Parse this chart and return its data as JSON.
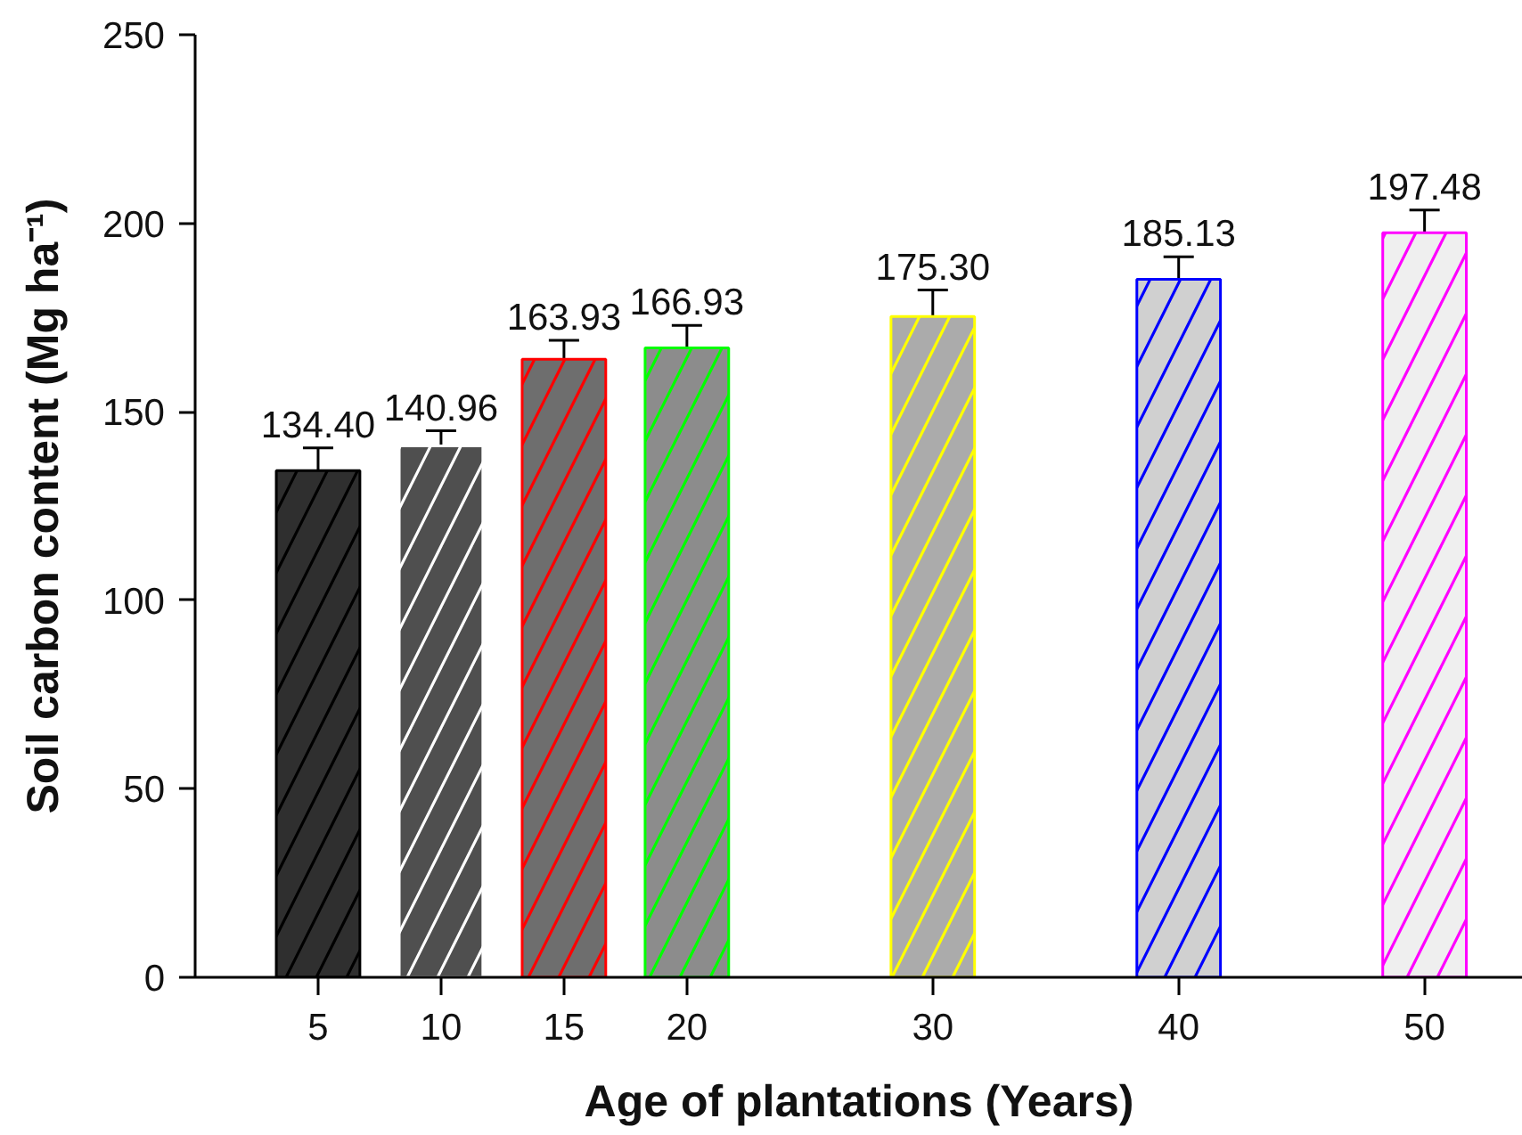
{
  "chart_data": {
    "type": "bar",
    "xlabel": "Age of plantations (Years)",
    "ylabel": "Soil carbon content (Mg ha⁻¹)",
    "x": [
      5,
      10,
      15,
      20,
      30,
      40,
      50
    ],
    "values": [
      134.4,
      140.96,
      163.93,
      166.93,
      175.3,
      185.13,
      197.48
    ],
    "value_labels": [
      "134.40",
      "140.96",
      "163.93",
      "166.93",
      "175.30",
      "185.13",
      "197.48"
    ],
    "errors": [
      6,
      4,
      5,
      6,
      7,
      6,
      6
    ],
    "colors": [
      "#2f2f2f",
      "#4f4f4f",
      "#6e6e6e",
      "#8c8c8c",
      "#ababab",
      "#d0d0d0",
      "#efefef"
    ],
    "xlim": [
      0,
      54
    ],
    "xticks": [
      5,
      10,
      15,
      20,
      30,
      40,
      50
    ],
    "ylim": [
      0,
      250
    ],
    "yticks": [
      0,
      50,
      100,
      150,
      200,
      250
    ],
    "grid": false
  }
}
